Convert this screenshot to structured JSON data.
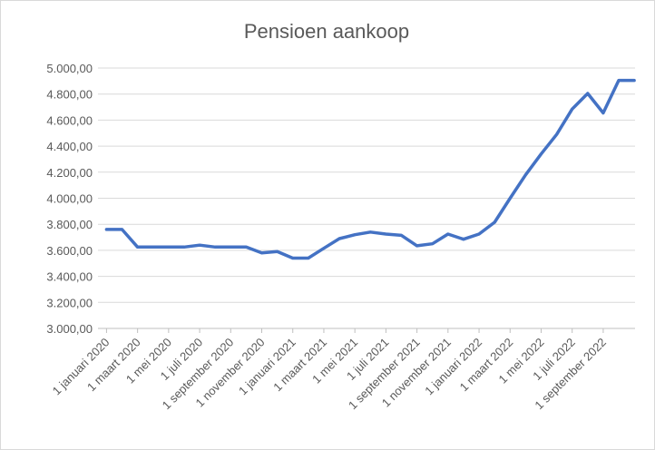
{
  "chart_data": {
    "type": "line",
    "title": "Pensioen aankoop",
    "xlabel": "",
    "ylabel": "",
    "ylim": [
      3000,
      5000
    ],
    "y_ticks": [
      "3.000,00",
      "3.200,00",
      "3.400,00",
      "3.600,00",
      "3.800,00",
      "4.000,00",
      "4.200,00",
      "4.400,00",
      "4.600,00",
      "4.800,00",
      "5.000,00"
    ],
    "y_tick_values": [
      3000,
      3200,
      3400,
      3600,
      3800,
      4000,
      4200,
      4400,
      4600,
      4800,
      5000
    ],
    "x_tick_labels": [
      "1 januari 2020",
      "1 maart 2020",
      "1 mei 2020",
      "1 juli 2020",
      "1 september 2020",
      "1 november 2020",
      "1 januari 2021",
      "1 maart 2021",
      "1 mei 2021",
      "1 juli 2021",
      "1 september 2021",
      "1 november 2021",
      "1 januari 2022",
      "1 maart 2022",
      "1 mei 2022",
      "1 juli 2022",
      "1 september 2022"
    ],
    "grid": true,
    "legend": "none",
    "line_color": "#4472c4",
    "series": [
      {
        "x": [
          "2020-01",
          "2020-02",
          "2020-03",
          "2020-04",
          "2020-05",
          "2020-06",
          "2020-07",
          "2020-08",
          "2020-09",
          "2020-10",
          "2020-11",
          "2020-12",
          "2021-01",
          "2021-02",
          "2021-03",
          "2021-04",
          "2021-05",
          "2021-06",
          "2021-07",
          "2021-08",
          "2021-09",
          "2021-10",
          "2021-11",
          "2021-12",
          "2022-01",
          "2022-02",
          "2022-03",
          "2022-04",
          "2022-05",
          "2022-06",
          "2022-07",
          "2022-08",
          "2022-09",
          "2022-10",
          "2022-11"
        ],
        "values": [
          3760,
          3760,
          3625,
          3625,
          3625,
          3625,
          3640,
          3625,
          3625,
          3625,
          3580,
          3590,
          3540,
          3540,
          3615,
          3690,
          3720,
          3740,
          3725,
          3715,
          3635,
          3650,
          3725,
          3685,
          3725,
          3815,
          4000,
          4180,
          4340,
          4490,
          4685,
          4805,
          4655,
          4905,
          4905
        ]
      }
    ]
  }
}
